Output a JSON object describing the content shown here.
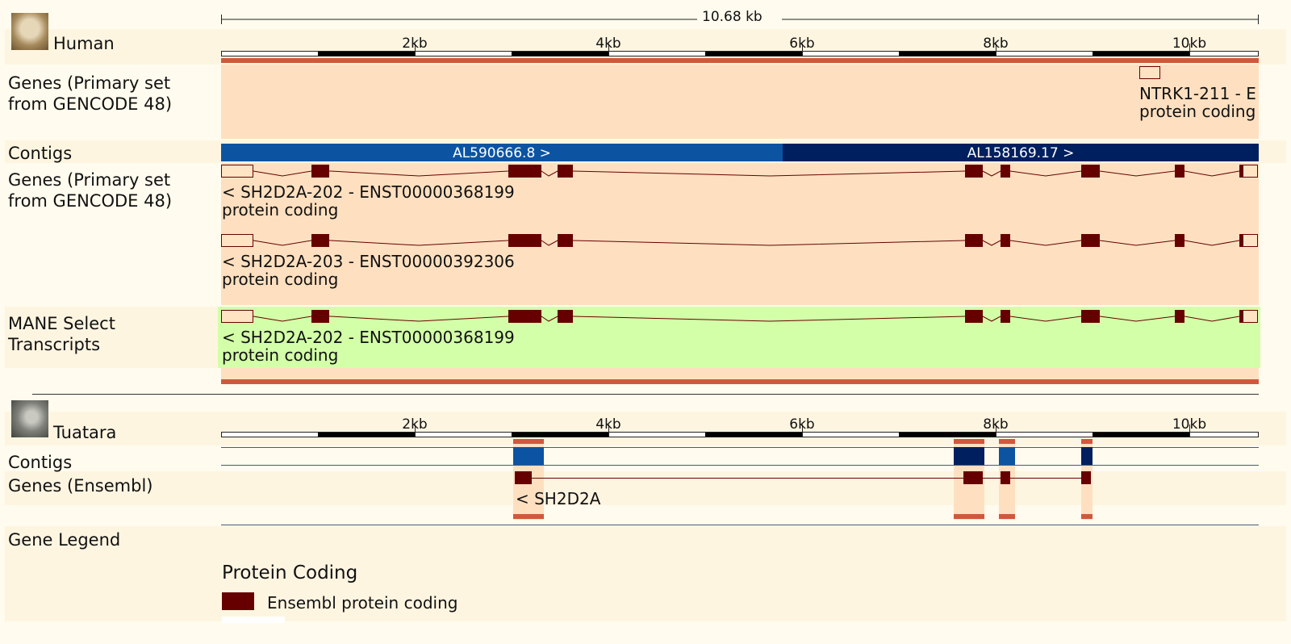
{
  "scale": {
    "label": "10.68 kb"
  },
  "colors": {
    "exon": "#660000",
    "track_bg": "#fee0c0",
    "mane_bg": "#d3ffa8",
    "label_bg": "#fef5e1",
    "contig_blue": "#0c54a2",
    "contig_dark": "#001f5e",
    "edge_red": "#d0583c"
  },
  "human": {
    "species": "Human",
    "icon": "human-portrait-icon",
    "ticks": [
      "2kb",
      "4kb",
      "6kb",
      "8kb",
      "10kb"
    ],
    "tracks": {
      "genes_top": {
        "label": "Genes (Primary set\nfrom GENCODE 48)",
        "gene": "NTRK1-211 - E",
        "biotype": "protein coding"
      },
      "contigs": {
        "label": "Contigs",
        "items": [
          "AL590666.8 >",
          "AL158169.17 >"
        ]
      },
      "genes_main": {
        "label": "Genes (Primary set\nfrom GENCODE 48)",
        "transcripts": [
          {
            "name": "< SH2D2A-202 - ENST00000368199",
            "biotype": "protein coding"
          },
          {
            "name": "< SH2D2A-203 - ENST00000392306",
            "biotype": "protein coding"
          }
        ]
      },
      "mane": {
        "label": "MANE Select\nTranscripts",
        "name": "< SH2D2A-202 - ENST00000368199",
        "biotype": "protein coding"
      }
    }
  },
  "tuatara": {
    "species": "Tuatara",
    "icon": "tuatara-portrait-icon",
    "ticks": [
      "2kb",
      "4kb",
      "6kb",
      "8kb",
      "10kb"
    ],
    "tracks": {
      "contigs": {
        "label": "Contigs"
      },
      "genes": {
        "label": "Genes (Ensembl)",
        "gene": "< SH2D2A"
      }
    }
  },
  "legend": {
    "label": "Gene Legend",
    "heading": "Protein Coding",
    "items": [
      {
        "label": "Ensembl protein coding"
      }
    ]
  }
}
